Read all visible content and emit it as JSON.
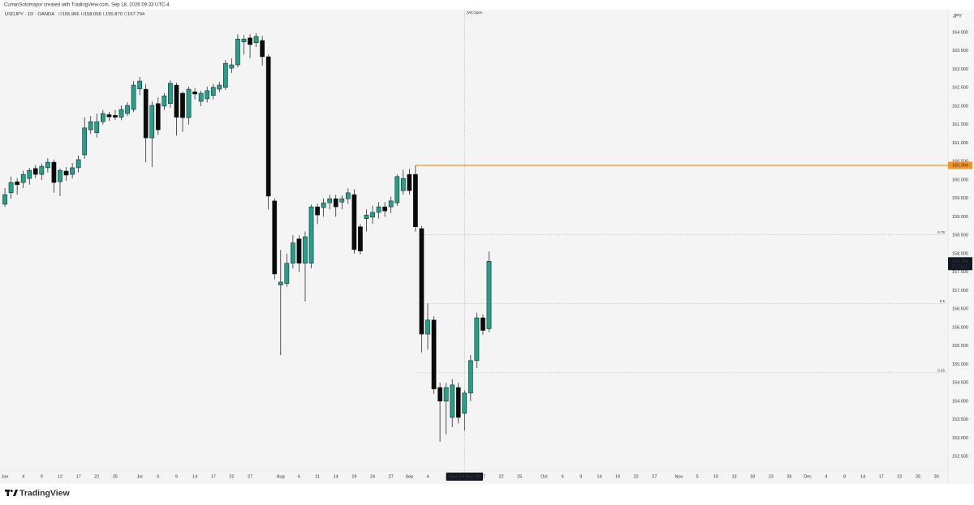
{
  "header": {
    "text": "CurranSotomayor created with TradingView.com, Sep 18, 2026 09:33 UTC-4"
  },
  "chart_data": {
    "type": "candlestick",
    "title": "USDJPY · 1D · OANDA",
    "ohlc": [
      {
        "name": "O",
        "text": "155.966"
      },
      {
        "name": "H",
        "text": "158.058"
      },
      {
        "name": "L",
        "text": "155.870"
      },
      {
        "name": "C",
        "text": "157.794"
      }
    ],
    "currency": "JPY",
    "session_marker": "[W] Open",
    "categories": [
      null,
      null,
      null,
      null,
      null,
      null,
      null,
      null,
      null,
      null,
      null,
      null,
      null,
      null,
      null,
      null,
      null,
      null,
      null,
      null,
      null,
      null,
      null,
      null,
      null,
      null,
      null,
      null,
      null,
      null,
      null,
      null,
      null,
      null,
      null,
      null,
      null,
      null,
      null,
      null,
      null,
      null,
      null,
      null,
      null,
      null,
      null,
      null,
      null,
      null,
      null,
      null,
      null,
      null,
      null,
      null,
      null,
      null,
      null,
      null,
      null,
      null,
      null,
      null,
      null,
      null,
      null,
      null,
      null,
      null,
      null,
      null,
      null,
      null,
      null,
      "Mon 14 Sep '26",
      null,
      null,
      null,
      null
    ],
    "open": [
      159.34,
      159.65,
      159.95,
      159.93,
      160.04,
      160.31,
      160.15,
      160.33,
      160.48,
      159.95,
      160.24,
      160.15,
      160.33,
      160.68,
      161.36,
      161.28,
      161.58,
      161.77,
      161.75,
      161.7,
      161.8,
      161.91,
      162.47,
      162.46,
      161.14,
      162.07,
      162.0,
      162.07,
      162.57,
      162.35,
      161.69,
      162.39,
      162.13,
      162.2,
      162.29,
      162.46,
      162.51,
      163.03,
      163.12,
      163.74,
      163.85,
      163.72,
      163.78,
      163.34,
      159.43,
      157.15,
      157.19,
      157.74,
      158.4,
      157.74,
      157.74,
      159.27,
      159.25,
      159.38,
      159.49,
      159.4,
      159.49,
      159.6,
      158.73,
      158.95,
      158.99,
      159.12,
      159.27,
      159.27,
      159.38,
      159.71,
      160.15,
      160.15,
      158.68,
      155.82,
      156.2,
      154.37,
      154.0,
      153.56,
      154.37,
      153.67,
      154.22,
      155.1,
      156.26,
      155.966
    ],
    "high": [
      159.78,
      160.09,
      160.05,
      160.25,
      160.33,
      160.4,
      160.44,
      160.59,
      160.55,
      160.31,
      160.35,
      160.46,
      160.66,
      161.7,
      161.73,
      161.8,
      161.9,
      161.85,
      161.9,
      162.02,
      162.1,
      162.68,
      162.79,
      162.6,
      162.13,
      162.24,
      162.35,
      162.7,
      162.64,
      162.4,
      162.53,
      162.5,
      162.42,
      162.53,
      162.6,
      162.66,
      163.25,
      163.3,
      163.95,
      163.93,
      163.95,
      163.98,
      163.9,
      163.4,
      159.5,
      158.1,
      158.0,
      158.5,
      158.5,
      158.6,
      159.33,
      159.35,
      159.5,
      159.6,
      159.6,
      159.58,
      159.77,
      159.75,
      158.8,
      159.2,
      159.3,
      159.4,
      159.4,
      159.55,
      160.15,
      160.28,
      160.3,
      160.394,
      158.75,
      156.65,
      156.3,
      154.5,
      154.5,
      154.6,
      154.5,
      154.3,
      155.25,
      156.4,
      156.35,
      158.058
    ],
    "low": [
      159.27,
      159.49,
      159.6,
      159.78,
      159.87,
      160.05,
      160.0,
      160.2,
      159.65,
      159.56,
      159.98,
      160.04,
      160.2,
      160.57,
      161.25,
      161.15,
      161.5,
      161.6,
      161.62,
      161.62,
      161.73,
      161.84,
      162.3,
      160.48,
      160.35,
      161.22,
      161.9,
      161.95,
      161.2,
      161.3,
      161.5,
      162.18,
      162.0,
      162.1,
      162.18,
      162.38,
      162.44,
      162.9,
      163.05,
      163.4,
      163.3,
      163.6,
      163.1,
      159.2,
      157.3,
      155.25,
      157.1,
      157.6,
      157.5,
      156.7,
      157.6,
      158.8,
      159.0,
      159.2,
      159.0,
      159.2,
      159.35,
      158.0,
      157.98,
      158.6,
      158.8,
      158.95,
      159.0,
      159.1,
      159.3,
      159.6,
      159.6,
      158.6,
      155.32,
      155.4,
      154.2,
      152.9,
      153.1,
      153.3,
      153.4,
      153.2,
      154.0,
      154.9,
      155.8,
      155.87
    ],
    "close": [
      159.6,
      159.93,
      159.87,
      160.15,
      160.26,
      160.15,
      160.37,
      160.48,
      159.93,
      160.26,
      160.13,
      160.33,
      160.55,
      161.41,
      161.58,
      161.58,
      161.8,
      161.71,
      161.7,
      161.91,
      162.02,
      162.57,
      162.68,
      161.14,
      162.02,
      161.36,
      162.28,
      162.62,
      161.7,
      161.69,
      162.46,
      162.33,
      162.35,
      162.42,
      162.51,
      162.57,
      163.16,
      163.12,
      163.82,
      163.82,
      163.67,
      163.89,
      163.34,
      159.56,
      157.45,
      157.23,
      157.74,
      158.29,
      157.74,
      158.46,
      159.27,
      159.05,
      159.38,
      159.49,
      159.27,
      159.49,
      159.65,
      158.11,
      158.07,
      159.05,
      159.12,
      159.27,
      159.16,
      159.43,
      160.09,
      160.04,
      159.71,
      158.73,
      155.82,
      156.2,
      154.33,
      154.0,
      154.37,
      154.44,
      153.56,
      154.22,
      155.1,
      156.26,
      155.92,
      157.794
    ],
    "up_color": "#22a08a",
    "down_color": "#0b0b0b",
    "grid": false,
    "xlim": [
      -0.8,
      153.9
    ],
    "xticks": [
      {
        "value": 0,
        "label": "Jun"
      },
      {
        "value": 3,
        "label": "4"
      },
      {
        "value": 6,
        "label": "9"
      },
      {
        "value": 9,
        "label": "12"
      },
      {
        "value": 12,
        "label": "17"
      },
      {
        "value": 15,
        "label": "22"
      },
      {
        "value": 18,
        "label": "25"
      },
      {
        "value": 22,
        "label": "Jul"
      },
      {
        "value": 25,
        "label": "6"
      },
      {
        "value": 28,
        "label": "9"
      },
      {
        "value": 31,
        "label": "14"
      },
      {
        "value": 34,
        "label": "17"
      },
      {
        "value": 37,
        "label": "22"
      },
      {
        "value": 40,
        "label": "27"
      },
      {
        "value": 45,
        "label": "Aug"
      },
      {
        "value": 48,
        "label": "6"
      },
      {
        "value": 51,
        "label": "11"
      },
      {
        "value": 54,
        "label": "14"
      },
      {
        "value": 57,
        "label": "19"
      },
      {
        "value": 60,
        "label": "24"
      },
      {
        "value": 63,
        "label": "27"
      },
      {
        "value": 66,
        "label": "Sep"
      },
      {
        "value": 69,
        "label": "4"
      },
      {
        "value": 78,
        "label": "17"
      },
      {
        "value": 81,
        "label": "22"
      },
      {
        "value": 84,
        "label": "25"
      },
      {
        "value": 88,
        "label": "Oct"
      },
      {
        "value": 91,
        "label": "6"
      },
      {
        "value": 94,
        "label": "9"
      },
      {
        "value": 97,
        "label": "14"
      },
      {
        "value": 100,
        "label": "19"
      },
      {
        "value": 103,
        "label": "22"
      },
      {
        "value": 106,
        "label": "27"
      },
      {
        "value": 110,
        "label": "Nov"
      },
      {
        "value": 113,
        "label": "5"
      },
      {
        "value": 116,
        "label": "10"
      },
      {
        "value": 119,
        "label": "13"
      },
      {
        "value": 122,
        "label": "18"
      },
      {
        "value": 125,
        "label": "23"
      },
      {
        "value": 128,
        "label": "26"
      },
      {
        "value": 131,
        "label": "Dec"
      },
      {
        "value": 134,
        "label": "4"
      },
      {
        "value": 137,
        "label": "9"
      },
      {
        "value": 140,
        "label": "14"
      },
      {
        "value": 143,
        "label": "17"
      },
      {
        "value": 146,
        "label": "22"
      },
      {
        "value": 149,
        "label": "25"
      },
      {
        "value": 152,
        "label": "30"
      }
    ],
    "ylim": [
      151.8,
      164.615
    ],
    "yticks": [
      {
        "value": 152.5,
        "label": "152.500"
      },
      {
        "value": 153,
        "label": "153.000"
      },
      {
        "value": 153.5,
        "label": "153.500"
      },
      {
        "value": 154,
        "label": "154.000"
      },
      {
        "value": 154.5,
        "label": "154.500"
      },
      {
        "value": 155,
        "label": "155.000"
      },
      {
        "value": 155.5,
        "label": "155.500"
      },
      {
        "value": 156,
        "label": "156.000"
      },
      {
        "value": 156.5,
        "label": "156.500"
      },
      {
        "value": 157,
        "label": "157.000"
      },
      {
        "value": 157.5,
        "label": "157.500"
      },
      {
        "value": 158,
        "label": "158.000"
      },
      {
        "value": 158.5,
        "label": "158.500"
      },
      {
        "value": 159,
        "label": "159.000"
      },
      {
        "value": 159.5,
        "label": "159.500"
      },
      {
        "value": 160,
        "label": "160.000"
      },
      {
        "value": 160.5,
        "label": "160.500"
      },
      {
        "value": 161,
        "label": "161.000"
      },
      {
        "value": 161.5,
        "label": "161.500"
      },
      {
        "value": 162,
        "label": "162.000"
      },
      {
        "value": 162.5,
        "label": "162.500"
      },
      {
        "value": 163,
        "label": "163.000"
      },
      {
        "value": 163.5,
        "label": "163.500"
      },
      {
        "value": 164,
        "label": "164.000"
      }
    ],
    "price_line": {
      "value": 160.394,
      "color": "#f39422"
    },
    "fib_levels": [
      {
        "ratio": 0.75,
        "value": 158.52
      },
      {
        "ratio": 0.5,
        "value": 156.65
      },
      {
        "ratio": 0.25,
        "value": 154.77
      }
    ],
    "last_price": {
      "value": 157.794,
      "countdown": "07:26:09"
    }
  },
  "footer": {
    "brand": "TradingView"
  }
}
